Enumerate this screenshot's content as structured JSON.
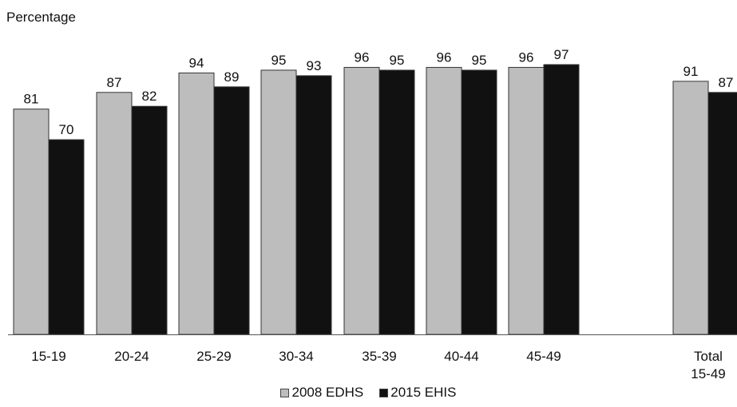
{
  "chart_data": {
    "type": "bar",
    "ylabel": "Percentage",
    "xlabel": "",
    "title": "",
    "ylim": [
      0,
      100
    ],
    "grid": false,
    "legend_position": "bottom-center",
    "categories": [
      {
        "label": "15-19"
      },
      {
        "label": "20-24"
      },
      {
        "label": "25-29"
      },
      {
        "label": "30-34"
      },
      {
        "label": "35-39"
      },
      {
        "label": "40-44"
      },
      {
        "label": "45-49"
      },
      {
        "label": "Total",
        "sublabel": "15-49"
      }
    ],
    "series": [
      {
        "name": "2008 EDHS",
        "color": "#bdbdbd",
        "values": [
          81,
          87,
          94,
          95,
          96,
          96,
          96,
          91
        ]
      },
      {
        "name": "2015 EHIS",
        "color": "#111111",
        "values": [
          70,
          82,
          89,
          93,
          95,
          95,
          97,
          87
        ]
      }
    ]
  }
}
